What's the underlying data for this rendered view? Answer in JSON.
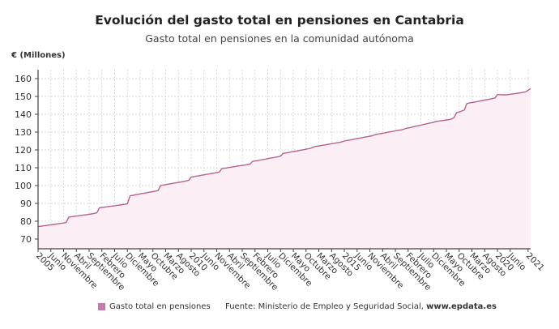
{
  "chart_data": {
    "type": "area",
    "title": "Evolución del gasto total en pensiones en Cantabria",
    "subtitle": "Gasto total en pensiones en la comunidad autónoma",
    "ylabel": "€ (Millones)",
    "xlabel": "",
    "ylim": [
      65,
      163
    ],
    "yticks": [
      70,
      80,
      90,
      100,
      110,
      120,
      130,
      140,
      150,
      160
    ],
    "grid": true,
    "x_start": "2005-01",
    "x_end": "2021-02",
    "x_frequency": "monthly",
    "xtick_labels": [
      {
        "month": "2005-01",
        "label": "2005"
      },
      {
        "month": "2005-06",
        "label": "Junio"
      },
      {
        "month": "2005-11",
        "label": "Noviembre"
      },
      {
        "month": "2006-04",
        "label": "Abril"
      },
      {
        "month": "2006-09",
        "label": "Septiembre"
      },
      {
        "month": "2007-02",
        "label": "Febrero"
      },
      {
        "month": "2007-07",
        "label": "Julio"
      },
      {
        "month": "2007-12",
        "label": "Diciembre"
      },
      {
        "month": "2008-05",
        "label": "Mayo"
      },
      {
        "month": "2008-10",
        "label": "Octubre"
      },
      {
        "month": "2009-03",
        "label": "Marzo"
      },
      {
        "month": "2009-08",
        "label": "Agosto"
      },
      {
        "month": "2010-01",
        "label": "2010"
      },
      {
        "month": "2010-06",
        "label": "Junio"
      },
      {
        "month": "2010-11",
        "label": "Noviembre"
      },
      {
        "month": "2011-04",
        "label": "Abril"
      },
      {
        "month": "2011-09",
        "label": "Septiembre"
      },
      {
        "month": "2012-02",
        "label": "Febrero"
      },
      {
        "month": "2012-07",
        "label": "Julio"
      },
      {
        "month": "2012-12",
        "label": "Diciembre"
      },
      {
        "month": "2013-05",
        "label": "Mayo"
      },
      {
        "month": "2013-10",
        "label": "Octubre"
      },
      {
        "month": "2014-03",
        "label": "Marzo"
      },
      {
        "month": "2014-08",
        "label": "Agosto"
      },
      {
        "month": "2015-01",
        "label": "2015"
      },
      {
        "month": "2015-06",
        "label": "Junio"
      },
      {
        "month": "2015-11",
        "label": "Noviembre"
      },
      {
        "month": "2016-04",
        "label": "Abril"
      },
      {
        "month": "2016-09",
        "label": "Septiembre"
      },
      {
        "month": "2017-02",
        "label": "Febrero"
      },
      {
        "month": "2017-07",
        "label": "Julio"
      },
      {
        "month": "2017-12",
        "label": "Diciembre"
      },
      {
        "month": "2018-05",
        "label": "Mayo"
      },
      {
        "month": "2018-10",
        "label": "Octubre"
      },
      {
        "month": "2019-03",
        "label": "Marzo"
      },
      {
        "month": "2019-08",
        "label": "Agosto"
      },
      {
        "month": "2020-01",
        "label": "2020"
      },
      {
        "month": "2020-06",
        "label": "Junio"
      },
      {
        "month": "2021-01",
        "label": "2021"
      }
    ],
    "series": [
      {
        "name": "Gasto total en pensiones",
        "color": "#b5628f",
        "fill": "#fbeef5",
        "values": [
          77.0,
          77.2,
          77.4,
          77.6,
          77.8,
          78.0,
          78.2,
          78.4,
          78.6,
          78.8,
          79.0,
          79.3,
          82.3,
          82.5,
          82.7,
          82.9,
          83.1,
          83.3,
          83.5,
          83.7,
          83.9,
          84.1,
          84.4,
          84.7,
          87.5,
          87.7,
          87.9,
          88.1,
          88.3,
          88.5,
          88.7,
          88.9,
          89.1,
          89.3,
          89.5,
          89.8,
          94.2,
          94.5,
          94.8,
          95.1,
          95.3,
          95.6,
          95.8,
          96.1,
          96.4,
          96.6,
          96.9,
          97.2,
          100.0,
          100.3,
          100.5,
          100.8,
          101.0,
          101.3,
          101.5,
          101.8,
          102.0,
          102.3,
          102.6,
          103.0,
          104.8,
          105.0,
          105.3,
          105.5,
          105.8,
          106.0,
          106.3,
          106.5,
          106.8,
          107.0,
          107.3,
          107.6,
          109.5,
          109.7,
          109.9,
          110.2,
          110.4,
          110.6,
          110.9,
          111.1,
          111.3,
          111.5,
          111.8,
          112.0,
          113.5,
          113.8,
          114.0,
          114.3,
          114.6,
          114.8,
          115.1,
          115.4,
          115.6,
          115.9,
          116.2,
          116.5,
          118.0,
          118.3,
          118.5,
          118.8,
          119.1,
          119.3,
          119.6,
          119.9,
          120.1,
          120.4,
          120.7,
          121.0,
          121.7,
          122.0,
          122.2,
          122.5,
          122.7,
          123.0,
          123.2,
          123.5,
          123.7,
          124.0,
          124.2,
          124.5,
          125.0,
          125.3,
          125.5,
          125.8,
          126.1,
          126.4,
          126.6,
          126.9,
          127.2,
          127.4,
          127.7,
          128.0,
          128.5,
          128.8,
          129.1,
          129.3,
          129.6,
          129.9,
          130.2,
          130.4,
          130.7,
          131.0,
          131.2,
          131.5,
          132.0,
          132.3,
          132.6,
          133.0,
          133.3,
          133.6,
          133.9,
          134.3,
          134.6,
          134.9,
          135.2,
          135.5,
          136.0,
          136.2,
          136.4,
          136.6,
          136.8,
          137.0,
          137.3,
          138.2,
          140.9,
          141.3,
          141.8,
          142.3,
          146.0,
          146.3,
          146.6,
          146.8,
          147.1,
          147.4,
          147.7,
          148.0,
          148.2,
          148.5,
          148.8,
          149.1,
          151.0,
          151.0,
          150.9,
          150.9,
          151.0,
          151.2,
          151.4,
          151.6,
          151.8,
          152.0,
          152.3,
          152.6,
          153.4,
          154.5
        ]
      }
    ]
  },
  "legend": {
    "label": "Gasto total en pensiones",
    "color": "#c978aa"
  },
  "source": {
    "prefix": "Fuente: Ministerio de Empleo y Seguridad Social, ",
    "site": "www.epdata.es"
  }
}
